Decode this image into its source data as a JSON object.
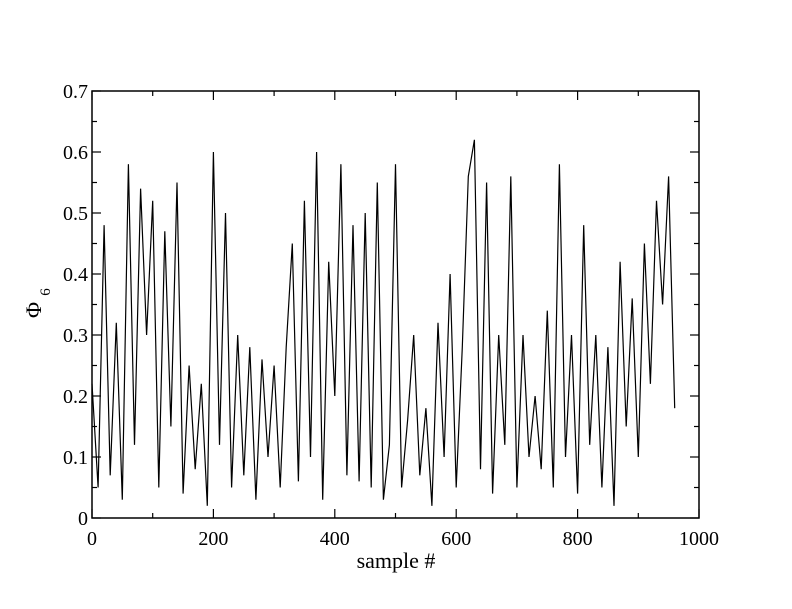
{
  "chart_data": {
    "type": "line",
    "title": "",
    "xlabel": "sample #",
    "ylabel": "Φ",
    "ylabel_subscript": "6",
    "xlim": [
      0,
      1000
    ],
    "ylim": [
      0,
      0.7
    ],
    "xticks": [
      0,
      200,
      400,
      600,
      800,
      1000
    ],
    "xtick_labels": [
      "0",
      "200",
      "400",
      "600",
      "800",
      "1000"
    ],
    "yticks": [
      0,
      0.1,
      0.2,
      0.3,
      0.4,
      0.5,
      0.6,
      0.7
    ],
    "ytick_labels": [
      "0",
      "0.1",
      "0.2",
      "0.3",
      "0.4",
      "0.5",
      "0.6",
      "0.7"
    ],
    "grid": false,
    "line_color": "#000000",
    "series": [
      {
        "x": [
          0,
          10,
          20,
          30,
          40,
          50,
          60,
          70,
          80,
          90,
          100,
          110,
          120,
          130,
          140,
          150,
          160,
          170,
          180,
          190,
          200,
          210,
          220,
          230,
          240,
          250,
          260,
          270,
          280,
          290,
          300,
          310,
          320,
          330,
          340,
          350,
          360,
          370,
          380,
          390,
          400,
          410,
          420,
          430,
          440,
          450,
          460,
          470,
          480,
          490,
          500,
          510,
          520,
          530,
          540,
          550,
          560,
          570,
          580,
          590,
          600,
          610,
          620,
          630,
          640,
          650,
          660,
          670,
          680,
          690,
          700,
          710,
          720,
          730,
          740,
          750,
          760,
          770,
          780,
          790,
          800,
          810,
          820,
          830,
          840,
          850,
          860,
          870,
          880,
          890,
          900,
          910,
          920,
          930,
          940,
          950,
          960
        ],
        "values": [
          0.22,
          0.05,
          0.48,
          0.07,
          0.32,
          0.03,
          0.58,
          0.12,
          0.54,
          0.3,
          0.52,
          0.05,
          0.47,
          0.15,
          0.55,
          0.04,
          0.25,
          0.08,
          0.22,
          0.02,
          0.6,
          0.12,
          0.5,
          0.05,
          0.3,
          0.07,
          0.28,
          0.03,
          0.26,
          0.1,
          0.25,
          0.05,
          0.28,
          0.45,
          0.06,
          0.52,
          0.1,
          0.6,
          0.03,
          0.42,
          0.2,
          0.58,
          0.07,
          0.48,
          0.06,
          0.5,
          0.05,
          0.55,
          0.03,
          0.12,
          0.58,
          0.05,
          0.16,
          0.3,
          0.07,
          0.18,
          0.02,
          0.32,
          0.1,
          0.4,
          0.05,
          0.28,
          0.56,
          0.62,
          0.08,
          0.55,
          0.04,
          0.3,
          0.12,
          0.56,
          0.05,
          0.3,
          0.1,
          0.2,
          0.08,
          0.34,
          0.05,
          0.58,
          0.1,
          0.3,
          0.04,
          0.48,
          0.12,
          0.3,
          0.05,
          0.28,
          0.02,
          0.42,
          0.15,
          0.36,
          0.1,
          0.45,
          0.22,
          0.52,
          0.35,
          0.56,
          0.18
        ]
      }
    ]
  }
}
